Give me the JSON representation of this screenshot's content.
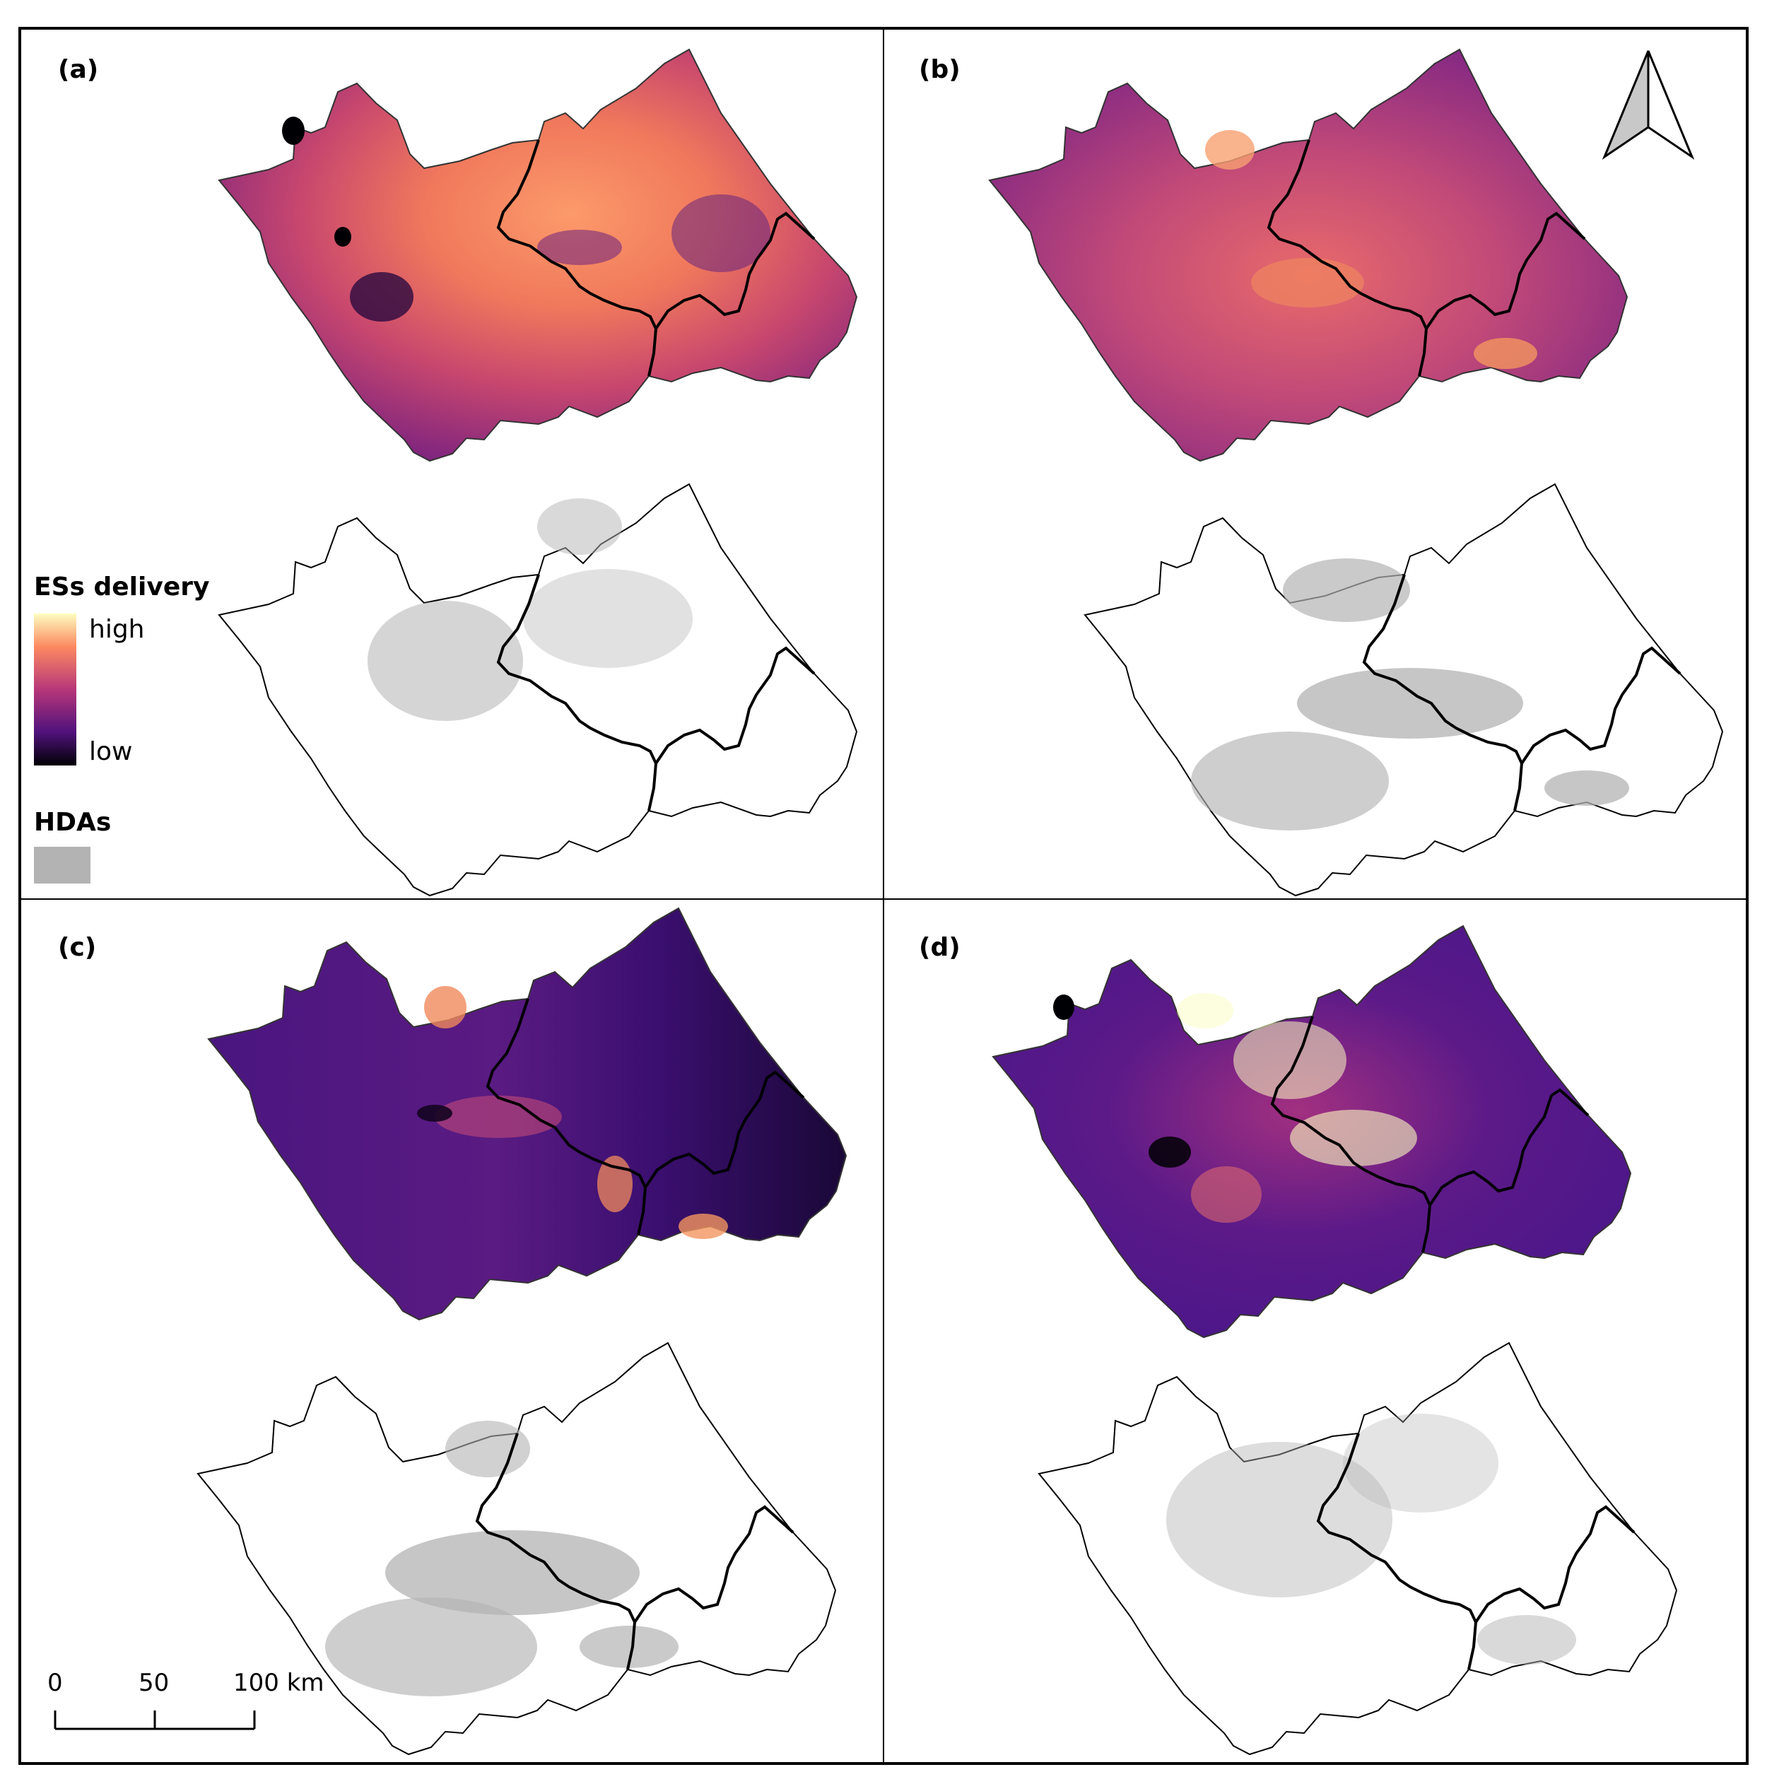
{
  "panels": [
    {
      "label": "(a)",
      "colormap": "mix"
    },
    {
      "label": "(b)",
      "colormap": "mid"
    },
    {
      "label": "(c)",
      "colormap": "dark"
    },
    {
      "label": "(d)",
      "colormap": "bright"
    }
  ],
  "legend": {
    "delivery_title": "ESs delivery",
    "high_label": "high",
    "low_label": "low",
    "hdas_title": "HDAs",
    "colors": {
      "high": "#fcfdbf",
      "mid_high": "#fc8961",
      "mid": "#b73779",
      "mid_low": "#51127c",
      "low": "#000004",
      "hda_fill": "#b3b3b3",
      "boundary": "#000000"
    }
  },
  "scale_bar": {
    "ticks": [
      "0",
      "50",
      "100 km"
    ]
  },
  "north_arrow": {
    "icon": "north-arrow-icon"
  }
}
